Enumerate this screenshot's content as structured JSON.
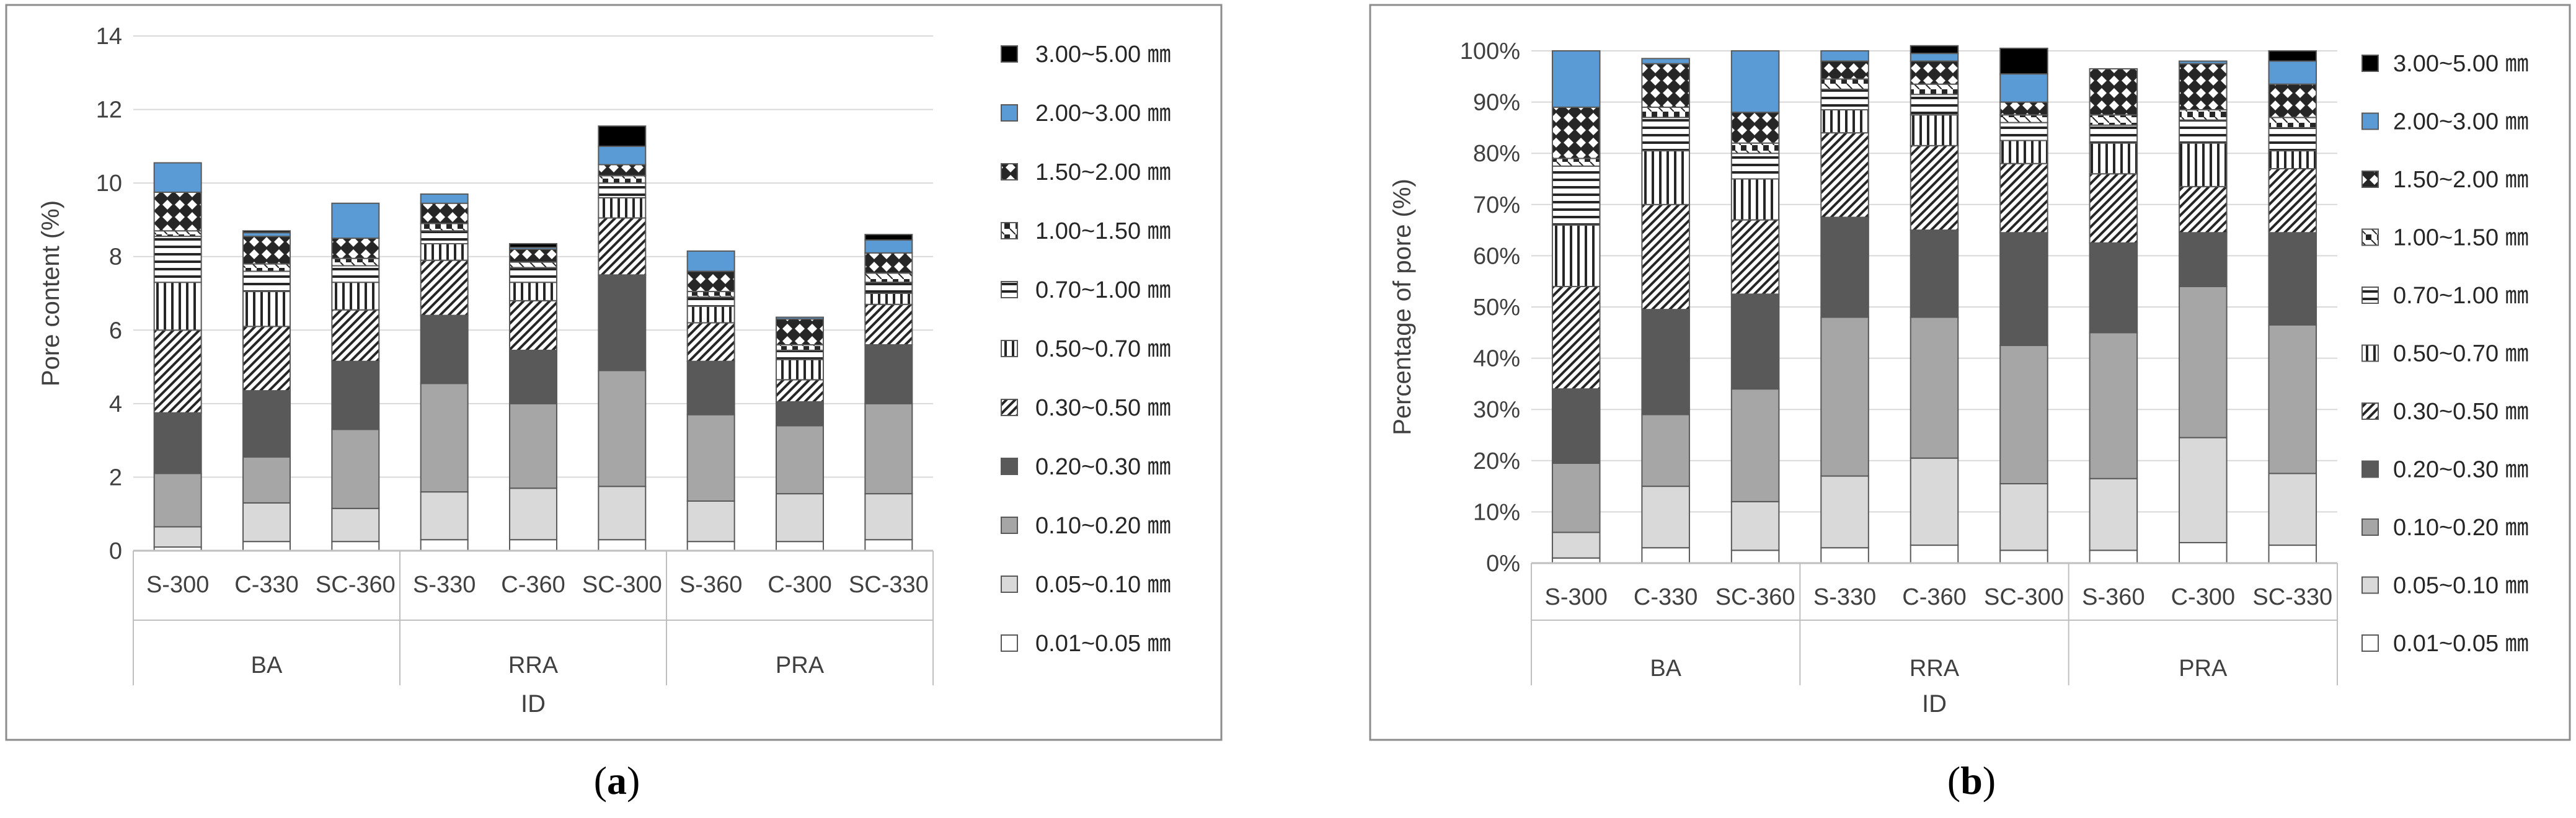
{
  "legend_labels": [
    "0.01~0.05 ㎜",
    "0.05~0.10 ㎜",
    "0.10~0.20 ㎜",
    "0.20~0.30 ㎜",
    "0.30~0.50 ㎜",
    "0.50~0.70 ㎜",
    "0.70~1.00 ㎜",
    "1.00~1.50 ㎜",
    "1.50~2.00 ㎜",
    "2.00~3.00 ㎜",
    "3.00~5.00 ㎜"
  ],
  "series_styles": [
    {
      "fill": "#ffffff"
    },
    {
      "fill": "#d9d9d9"
    },
    {
      "fill": "#a6a6a6"
    },
    {
      "fill": "#595959"
    },
    {
      "pattern": "diag"
    },
    {
      "pattern": "vert"
    },
    {
      "pattern": "horiz"
    },
    {
      "pattern": "checkcell"
    },
    {
      "pattern": "diamond"
    },
    {
      "fill": "#5b9bd5"
    },
    {
      "fill": "#000000"
    }
  ],
  "captions": {
    "a_open": "(",
    "a_letter": "a",
    "a_close": ")",
    "b_open": "(",
    "b_letter": "b",
    "b_close": ")"
  },
  "chart_data": [
    {
      "type": "bar",
      "stacked": true,
      "title": "",
      "xlabel": "ID",
      "ylabel": "Pore content (%)",
      "ylim": [
        0,
        14
      ],
      "yticks": [
        "0",
        "2",
        "4",
        "6",
        "8",
        "10",
        "12",
        "14"
      ],
      "categories": [
        "S-300",
        "C-330",
        "SC-360",
        "S-330",
        "C-360",
        "SC-300",
        "S-360",
        "C-300",
        "SC-330"
      ],
      "groups": [
        {
          "label": "BA",
          "count": 3
        },
        {
          "label": "RRA",
          "count": 3
        },
        {
          "label": "PRA",
          "count": 3
        }
      ],
      "series": [
        {
          "name": "0.01~0.05 ㎜",
          "values": [
            0.1,
            0.25,
            0.25,
            0.3,
            0.3,
            0.3,
            0.25,
            0.25,
            0.3
          ]
        },
        {
          "name": "0.05~0.10 ㎜",
          "values": [
            0.55,
            1.05,
            0.9,
            1.3,
            1.4,
            1.45,
            1.1,
            1.3,
            1.25
          ]
        },
        {
          "name": "0.10~0.20 ㎜",
          "values": [
            1.45,
            1.25,
            2.15,
            2.95,
            2.3,
            3.15,
            2.35,
            1.85,
            2.45
          ]
        },
        {
          "name": "0.20~0.30 ㎜",
          "values": [
            1.65,
            1.8,
            1.85,
            1.85,
            1.45,
            2.6,
            1.45,
            0.65,
            1.6
          ]
        },
        {
          "name": "0.30~0.50 ㎜",
          "values": [
            2.25,
            1.75,
            1.4,
            1.5,
            1.35,
            1.55,
            1.05,
            0.6,
            1.1
          ]
        },
        {
          "name": "0.50~0.70 ㎜",
          "values": [
            1.3,
            0.95,
            0.75,
            0.45,
            0.5,
            0.55,
            0.45,
            0.55,
            0.3
          ]
        },
        {
          "name": "0.70~1.00 ㎜",
          "values": [
            1.25,
            0.55,
            0.45,
            0.35,
            0.4,
            0.4,
            0.25,
            0.25,
            0.3
          ]
        },
        {
          "name": "1.00~1.50 ㎜",
          "values": [
            0.15,
            0.2,
            0.2,
            0.2,
            0.15,
            0.2,
            0.15,
            0.15,
            0.25
          ]
        },
        {
          "name": "1.50~2.00 ㎜",
          "values": [
            1.05,
            0.75,
            0.55,
            0.55,
            0.35,
            0.3,
            0.55,
            0.7,
            0.55
          ]
        },
        {
          "name": "2.00~3.00 ㎜",
          "values": [
            0.8,
            0.1,
            0.95,
            0.25,
            0.05,
            0.5,
            0.55,
            0.05,
            0.35
          ]
        },
        {
          "name": "3.00~5.00 ㎜",
          "values": [
            0.0,
            0.05,
            0.0,
            0.0,
            0.1,
            0.55,
            0.0,
            0.0,
            0.15
          ]
        }
      ]
    },
    {
      "type": "bar",
      "stacked": true,
      "title": "",
      "xlabel": "ID",
      "ylabel": "Percentage of pore (%)",
      "ylim": [
        0,
        100
      ],
      "yticks": [
        "0%",
        "10%",
        "20%",
        "30%",
        "40%",
        "50%",
        "60%",
        "70%",
        "80%",
        "90%",
        "100%"
      ],
      "categories": [
        "S-300",
        "C-330",
        "SC-360",
        "S-330",
        "C-360",
        "SC-300",
        "S-360",
        "C-300",
        "SC-330"
      ],
      "groups": [
        {
          "label": "BA",
          "count": 3
        },
        {
          "label": "RRA",
          "count": 3
        },
        {
          "label": "PRA",
          "count": 3
        }
      ],
      "series": [
        {
          "name": "0.01~0.05 ㎜",
          "values": [
            1,
            3,
            2.5,
            3,
            3.5,
            2.5,
            2.5,
            4,
            3.5
          ]
        },
        {
          "name": "0.05~0.10 ㎜",
          "values": [
            5,
            12,
            9.5,
            14,
            17,
            13,
            14,
            20.5,
            14
          ]
        },
        {
          "name": "0.10~0.20 ㎜",
          "values": [
            13.5,
            14,
            22,
            31,
            27.5,
            27,
            28.5,
            29.5,
            29
          ]
        },
        {
          "name": "0.20~0.30 ㎜",
          "values": [
            14.5,
            20.5,
            18.5,
            19.5,
            17,
            22,
            17.5,
            10.5,
            18
          ]
        },
        {
          "name": "0.30~0.50 ㎜",
          "values": [
            20,
            20.5,
            14.5,
            16.5,
            16.5,
            13.5,
            13.5,
            9,
            12.5
          ]
        },
        {
          "name": "0.50~0.70 ㎜",
          "values": [
            12,
            10.5,
            8,
            4.5,
            6,
            4.5,
            6,
            8.5,
            3.5
          ]
        },
        {
          "name": "0.70~1.00 ㎜",
          "values": [
            11.5,
            6.5,
            5,
            4,
            4,
            3.5,
            3.5,
            4.5,
            4.5
          ]
        },
        {
          "name": "1.00~1.50 ㎜",
          "values": [
            1.5,
            2,
            2,
            2,
            2,
            1.5,
            2,
            2,
            2
          ]
        },
        {
          "name": "1.50~2.00 ㎜",
          "values": [
            10,
            8.5,
            6,
            3.5,
            4.5,
            2.5,
            9,
            9,
            6.5
          ]
        },
        {
          "name": "2.00~3.00 ㎜",
          "values": [
            11,
            1,
            12,
            2,
            1.5,
            5.5,
            0,
            0.5,
            4.5
          ]
        },
        {
          "name": "3.00~5.00 ㎜",
          "values": [
            0,
            0,
            0,
            0,
            1.5,
            5,
            0,
            0,
            2
          ]
        }
      ]
    }
  ]
}
